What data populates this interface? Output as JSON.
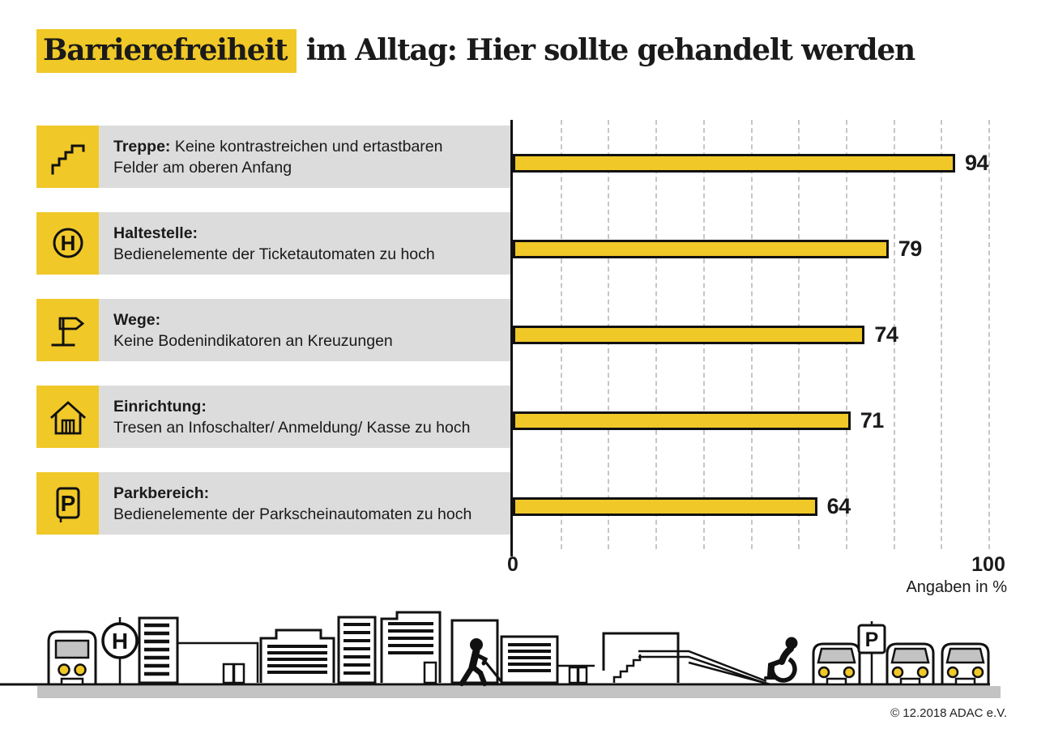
{
  "title": {
    "highlight": "Barrierefreiheit",
    "rest": " im Alltag: Hier sollte gehandelt werden"
  },
  "chart_data": {
    "type": "bar",
    "orientation": "horizontal",
    "title": "Barrierefreiheit im Alltag: Hier sollte gehandelt werden",
    "categories": [
      "Treppe",
      "Haltestelle",
      "Wege",
      "Einrichtung",
      "Parkbereich"
    ],
    "values": [
      94,
      79,
      74,
      71,
      64
    ],
    "xlim": [
      0,
      100
    ],
    "x_tick_labels": [
      "0",
      "100"
    ],
    "gridlines_every": 10,
    "grid": "dashed-vertical",
    "unit": "Angaben in %",
    "bar_color": "#F0C828",
    "rows": [
      {
        "icon": "stairs-icon",
        "term": "Treppe:",
        "rest": " Keine kontrastreichen und ertastbaren",
        "line2": "Felder am oberen Anfang",
        "value": 94
      },
      {
        "icon": "bus-stop-icon",
        "term": "Haltestelle:",
        "rest": "",
        "line2": "Bedienelemente der Ticketautomaten zu hoch",
        "value": 79
      },
      {
        "icon": "signpost-icon",
        "term": "Wege:",
        "rest": "",
        "line2": "Keine Bodenindikatoren an Kreuzungen",
        "value": 74
      },
      {
        "icon": "building-icon",
        "term": "Einrichtung:",
        "rest": "",
        "line2": "Tresen an Infoschalter/ Anmeldung/ Kasse zu hoch",
        "value": 71
      },
      {
        "icon": "parking-icon",
        "term": "Parkbereich:",
        "rest": "",
        "line2": "Bedienelemente der Parkscheinautomaten zu hoch",
        "value": 64
      }
    ]
  },
  "axis": {
    "min_label": "0",
    "max_label": "100",
    "unit": "Angaben in %"
  },
  "sign_letters": {
    "bus_stop": "H",
    "parking": "P"
  },
  "footer": {
    "copyright": "© 12.2018 ADAC e.V.",
    "illustration": "city-skyline-with-bus-pedestrian-ramp-wheelchair-cars"
  },
  "colors": {
    "accent_yellow": "#F0C828",
    "label_gray": "#DCDCDC",
    "ground_gray": "#C3C3C3",
    "gridline": "#C6C6C6",
    "text": "#1A1A1A"
  }
}
